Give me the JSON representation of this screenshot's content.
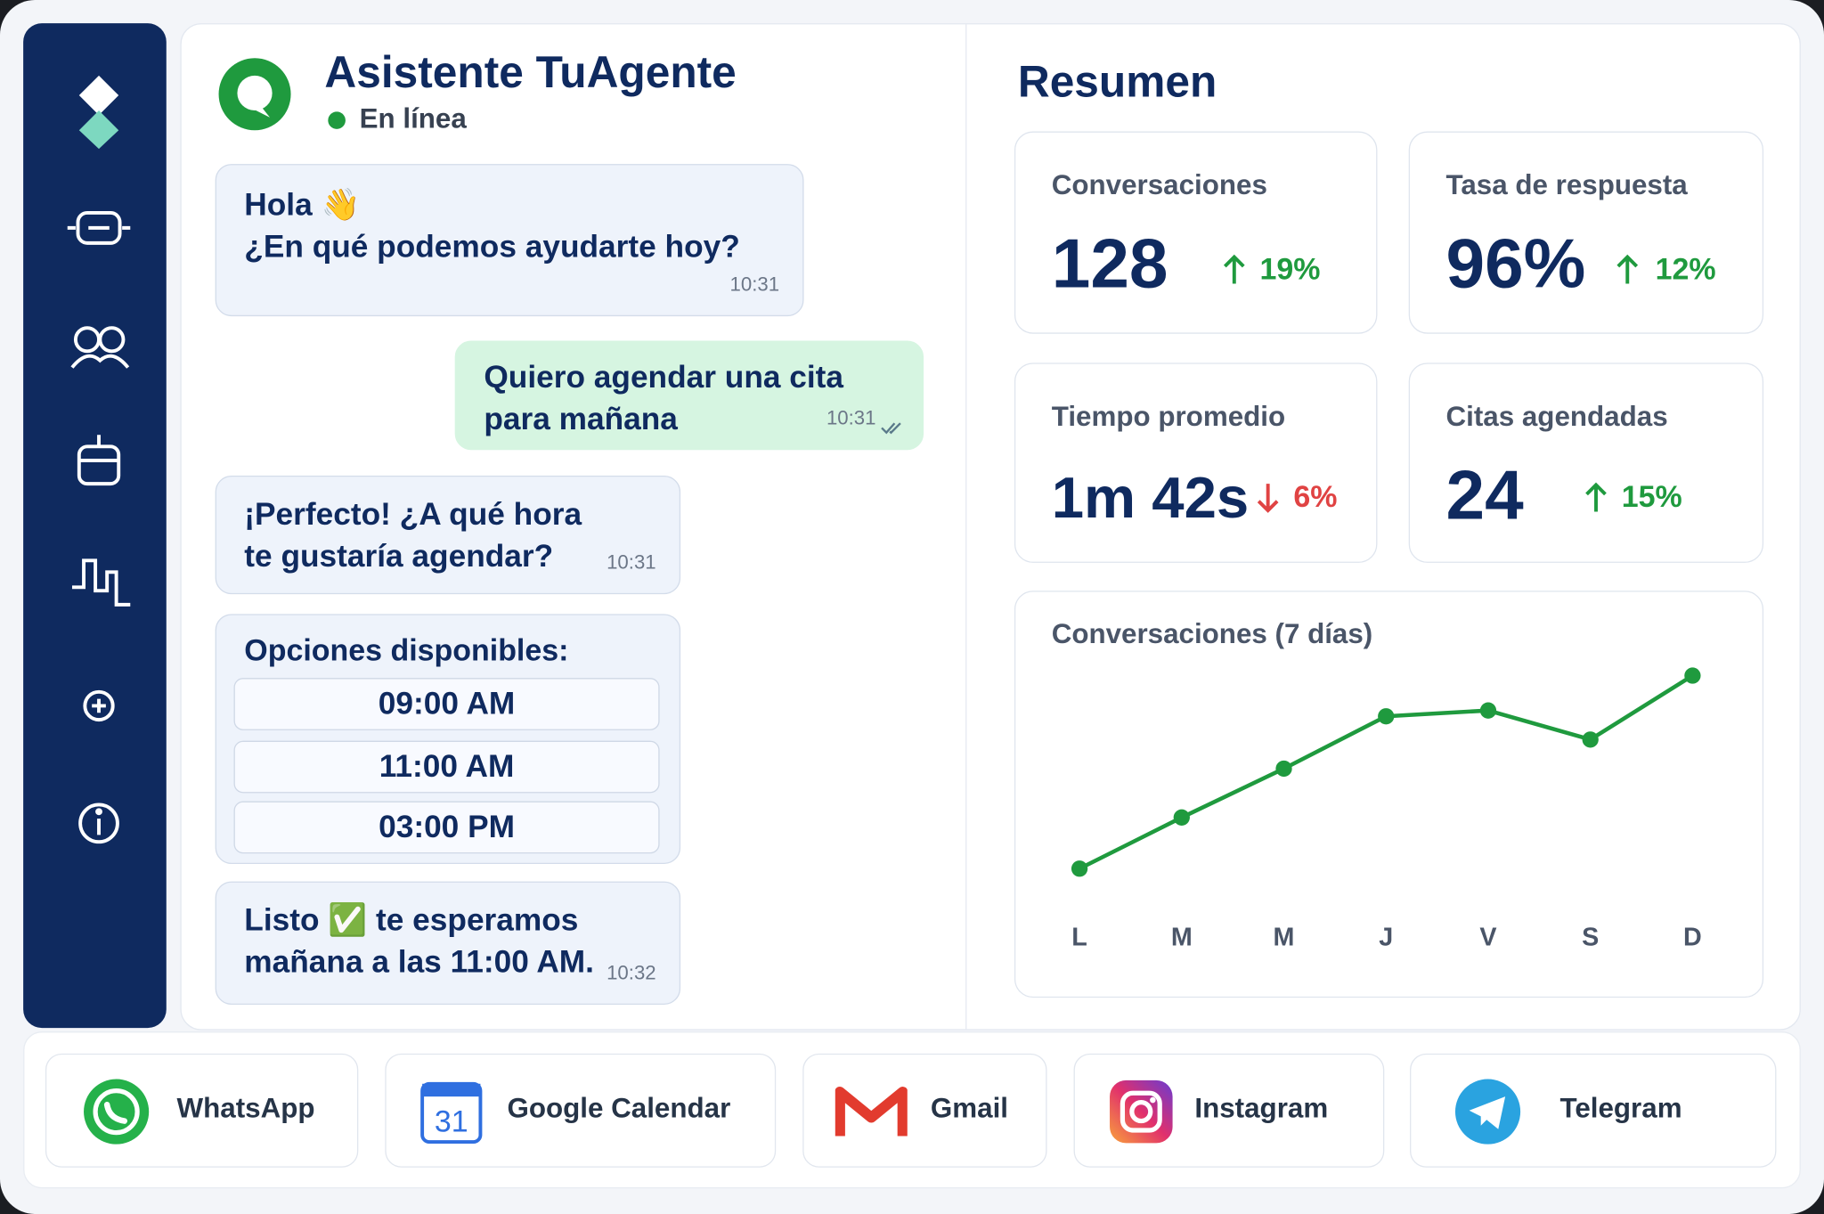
{
  "header": {
    "title": "Asistente TuAgente",
    "status": "En línea"
  },
  "messages": [
    {
      "from": "agent",
      "text": "Hola 👋\n¿En qué podemos ayudarte hoy?",
      "time": "10:31"
    },
    {
      "from": "user",
      "text": "Quiero agendar una cita\npara mañana",
      "time": "10:31"
    },
    {
      "from": "agent",
      "text": "¡Perfecto! ¿A qué hora\nte gustaría agendar?",
      "time": "10:31"
    },
    {
      "from": "agent",
      "text": "Listo ✅ te esperamos\nmañana a las 11:00 AM.",
      "time": "10:32"
    }
  ],
  "options": {
    "title": "Opciones disponibles:",
    "items": [
      "09:00 AM",
      "11:00 AM",
      "03:00 PM"
    ]
  },
  "summary": {
    "title": "Resumen",
    "stats": [
      {
        "label": "Conversaciones",
        "value": "128",
        "change": "19%",
        "direction": "up"
      },
      {
        "label": "Tasa de respuesta",
        "value": "96%",
        "change": "12%",
        "direction": "up"
      },
      {
        "label": "Tiempo promedio",
        "value": "1m 42s",
        "change": "6%",
        "direction": "down"
      },
      {
        "label": "Citas agendadas",
        "value": "24",
        "change": "15%",
        "direction": "up"
      }
    ]
  },
  "chart_data": {
    "type": "line",
    "title": "Conversaciones (7 días)",
    "categories": [
      "L",
      "M",
      "M",
      "J",
      "V",
      "S",
      "D"
    ],
    "values": [
      5.4,
      9.8,
      14,
      18.5,
      19,
      16.5,
      22
    ],
    "color": "#1f9a3e",
    "ylim": [
      0,
      25
    ]
  },
  "integrations": [
    "WhatsApp",
    "Google Calendar",
    "Gmail",
    "Instagram",
    "Telegram"
  ],
  "calendar_icon_day": "31"
}
